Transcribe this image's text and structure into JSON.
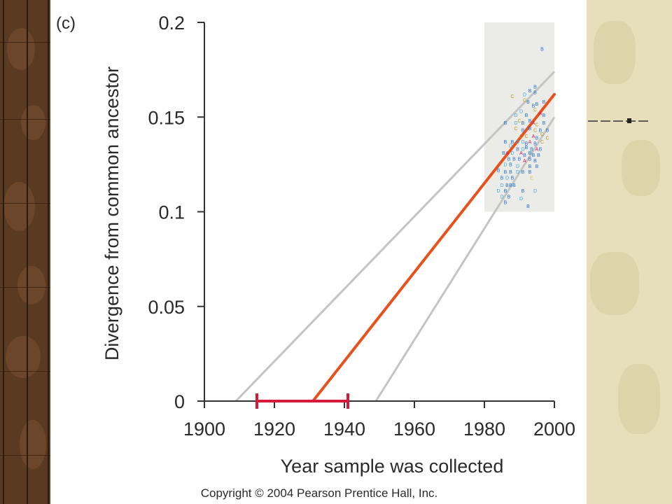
{
  "chart_data": {
    "type": "scatter",
    "panel_label": "(c)",
    "xlabel": "Year sample was collected",
    "ylabel": "Divergence from common ancestor",
    "xlim": [
      1900,
      2000
    ],
    "ylim": [
      0,
      0.2
    ],
    "x_ticks": [
      "1900",
      "1920",
      "1940",
      "1960",
      "1980",
      "2000"
    ],
    "y_ticks": [
      "0",
      "0.05",
      "0.1",
      "0.15",
      "0.2"
    ],
    "highlight_box": {
      "x_range": [
        1980,
        2000
      ],
      "y_range": [
        0.1,
        0.2
      ]
    },
    "fit_line": {
      "x": [
        1931,
        2000
      ],
      "y": [
        0,
        0.162
      ],
      "color": "#e8501c"
    },
    "confidence_lines": [
      {
        "x": [
          1909,
          2000
        ],
        "y": [
          0,
          0.174
        ],
        "color": "#c4c4c4"
      },
      {
        "x": [
          1949,
          2000
        ],
        "y": [
          0,
          0.15
        ],
        "color": "#c4c4c4"
      }
    ],
    "origin_interval": {
      "x": [
        1915,
        1941
      ],
      "y": 0,
      "color": "#d61a3c"
    },
    "subtype_colors": {
      "A": "#e0145a",
      "B": "#1f6fd0",
      "C": "#b89b12",
      "D": "#3aa8e0",
      "E": "#d8c85a"
    },
    "points": [
      [
        "B",
        1996.5,
        0.186
      ],
      [
        "C",
        1988,
        0.161
      ],
      [
        "D",
        1991.5,
        0.162
      ],
      [
        "C",
        1991.5,
        0.159
      ],
      [
        "B",
        1994.5,
        0.166
      ],
      [
        "B",
        1994.5,
        0.163
      ],
      [
        "B",
        1993,
        0.164
      ],
      [
        "B",
        1995,
        0.157
      ],
      [
        "B",
        1997,
        0.158
      ],
      [
        "B",
        1992.5,
        0.158
      ],
      [
        "B",
        1994,
        0.156
      ],
      [
        "C",
        1994.5,
        0.154
      ],
      [
        "D",
        1990.5,
        0.153
      ],
      [
        "B",
        1992,
        0.151
      ],
      [
        "D",
        1989,
        0.151
      ],
      [
        "A",
        1996,
        0.152
      ],
      [
        "B",
        1997,
        0.151
      ],
      [
        "B",
        1986,
        0.147
      ],
      [
        "D",
        1989,
        0.147
      ],
      [
        "C",
        1990,
        0.148
      ],
      [
        "B",
        1991,
        0.147
      ],
      [
        "B",
        1993,
        0.148
      ],
      [
        "A",
        1994,
        0.147
      ],
      [
        "C",
        1995,
        0.146
      ],
      [
        "B",
        1997,
        0.147
      ],
      [
        "C",
        1989,
        0.144
      ],
      [
        "B",
        1991,
        0.143
      ],
      [
        "B",
        1993,
        0.144
      ],
      [
        "C",
        1994.5,
        0.143
      ],
      [
        "B",
        1996,
        0.143
      ],
      [
        "B",
        1998,
        0.143
      ],
      [
        "C",
        1990.5,
        0.14
      ],
      [
        "C",
        1992,
        0.14
      ],
      [
        "A",
        1994,
        0.14
      ],
      [
        "B",
        1995,
        0.139
      ],
      [
        "C",
        1998,
        0.139
      ],
      [
        "C",
        1996.5,
        0.141
      ],
      [
        "B",
        1986,
        0.137
      ],
      [
        "B",
        1988,
        0.137
      ],
      [
        "D",
        1989.5,
        0.137
      ],
      [
        "D",
        1991,
        0.137
      ],
      [
        "B",
        1992,
        0.136
      ],
      [
        "A",
        1993,
        0.137
      ],
      [
        "B",
        1994.5,
        0.136
      ],
      [
        "C",
        1996.5,
        0.137
      ],
      [
        "D",
        1987.5,
        0.135
      ],
      [
        "B",
        1989.5,
        0.133
      ],
      [
        "D",
        1991,
        0.133
      ],
      [
        "B",
        1992,
        0.134
      ],
      [
        "B",
        1993.5,
        0.133
      ],
      [
        "A",
        1995,
        0.133
      ],
      [
        "B",
        1996,
        0.133
      ],
      [
        "B",
        1985.5,
        0.131
      ],
      [
        "A",
        1986.5,
        0.131
      ],
      [
        "D",
        1988,
        0.131
      ],
      [
        "A",
        1990.5,
        0.131
      ],
      [
        "B",
        1991.5,
        0.13
      ],
      [
        "B",
        1993,
        0.131
      ],
      [
        "B",
        1994,
        0.13
      ],
      [
        "B",
        1995.5,
        0.13
      ],
      [
        "B",
        1987,
        0.128
      ],
      [
        "B",
        1988.5,
        0.128
      ],
      [
        "B",
        1990,
        0.128
      ],
      [
        "A",
        1991.5,
        0.127
      ],
      [
        "B",
        1993,
        0.128
      ],
      [
        "B",
        1994.5,
        0.127
      ],
      [
        "D",
        1986,
        0.125
      ],
      [
        "B",
        1987.5,
        0.125
      ],
      [
        "D",
        1989.5,
        0.124
      ],
      [
        "B",
        1993,
        0.124
      ],
      [
        "B",
        1995,
        0.124
      ],
      [
        "B",
        1984,
        0.122
      ],
      [
        "B",
        1986,
        0.121
      ],
      [
        "B",
        1987.5,
        0.121
      ],
      [
        "D",
        1989.5,
        0.121
      ],
      [
        "B",
        1991,
        0.121
      ],
      [
        "B",
        1993,
        0.121
      ],
      [
        "B",
        1985,
        0.118
      ],
      [
        "D",
        1986.5,
        0.118
      ],
      [
        "B",
        1988,
        0.118
      ],
      [
        "E",
        1993.5,
        0.118
      ],
      [
        "D",
        1985,
        0.114
      ],
      [
        "B",
        1986.5,
        0.114
      ],
      [
        "B",
        1987.5,
        0.114
      ],
      [
        "B",
        1988.5,
        0.114
      ],
      [
        "D",
        1984,
        0.111
      ],
      [
        "B",
        1986,
        0.111
      ],
      [
        "B",
        1991,
        0.111
      ],
      [
        "D",
        1994.5,
        0.111
      ],
      [
        "D",
        1985,
        0.108
      ],
      [
        "B",
        1987,
        0.108
      ],
      [
        "D",
        1990.5,
        0.107
      ],
      [
        "B",
        1986,
        0.105
      ],
      [
        "B",
        1992.5,
        0.103
      ]
    ]
  },
  "copyright": "Copyright © 2004 Pearson Prentice Hall, Inc."
}
